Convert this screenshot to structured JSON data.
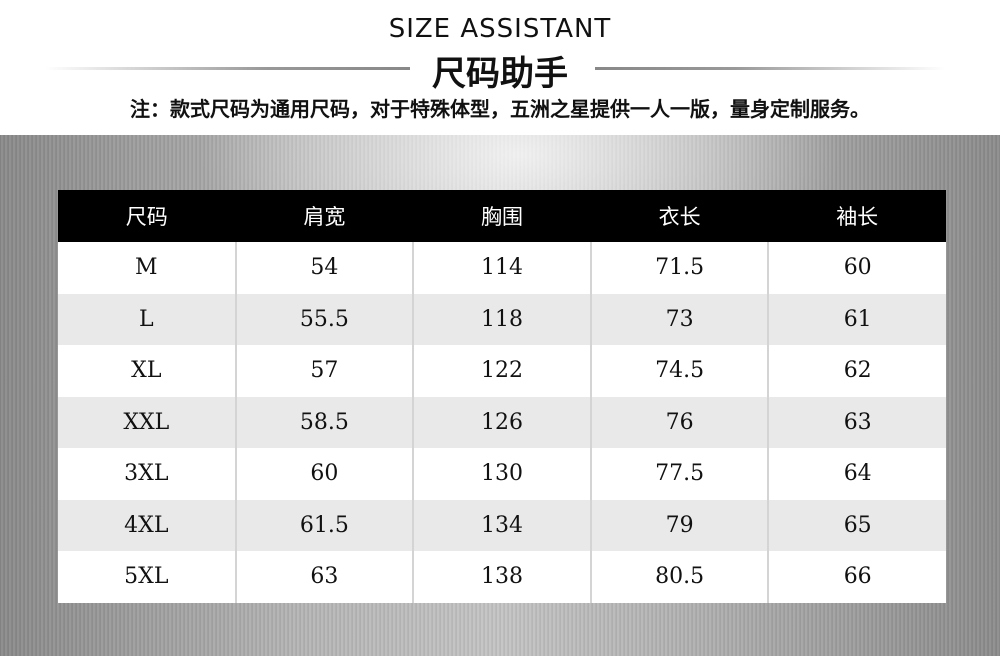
{
  "header": {
    "title_en": "SIZE ASSISTANT",
    "title_cn": "尺码助手",
    "note": "注：款式尺码为通用尺码，对于特殊体型，五洲之星提供一人一版，量身定制服务。"
  },
  "table": {
    "columns": [
      "尺码",
      "肩宽",
      "胸围",
      "衣长",
      "袖长"
    ],
    "rows": [
      [
        "M",
        "54",
        "114",
        "71.5",
        "60"
      ],
      [
        "L",
        "55.5",
        "118",
        "73",
        "61"
      ],
      [
        "XL",
        "57",
        "122",
        "74.5",
        "62"
      ],
      [
        "XXL",
        "58.5",
        "126",
        "76",
        "63"
      ],
      [
        "3XL",
        "60",
        "130",
        "77.5",
        "64"
      ],
      [
        "4XL",
        "61.5",
        "134",
        "79",
        "65"
      ],
      [
        "5XL",
        "63",
        "138",
        "80.5",
        "66"
      ]
    ]
  }
}
